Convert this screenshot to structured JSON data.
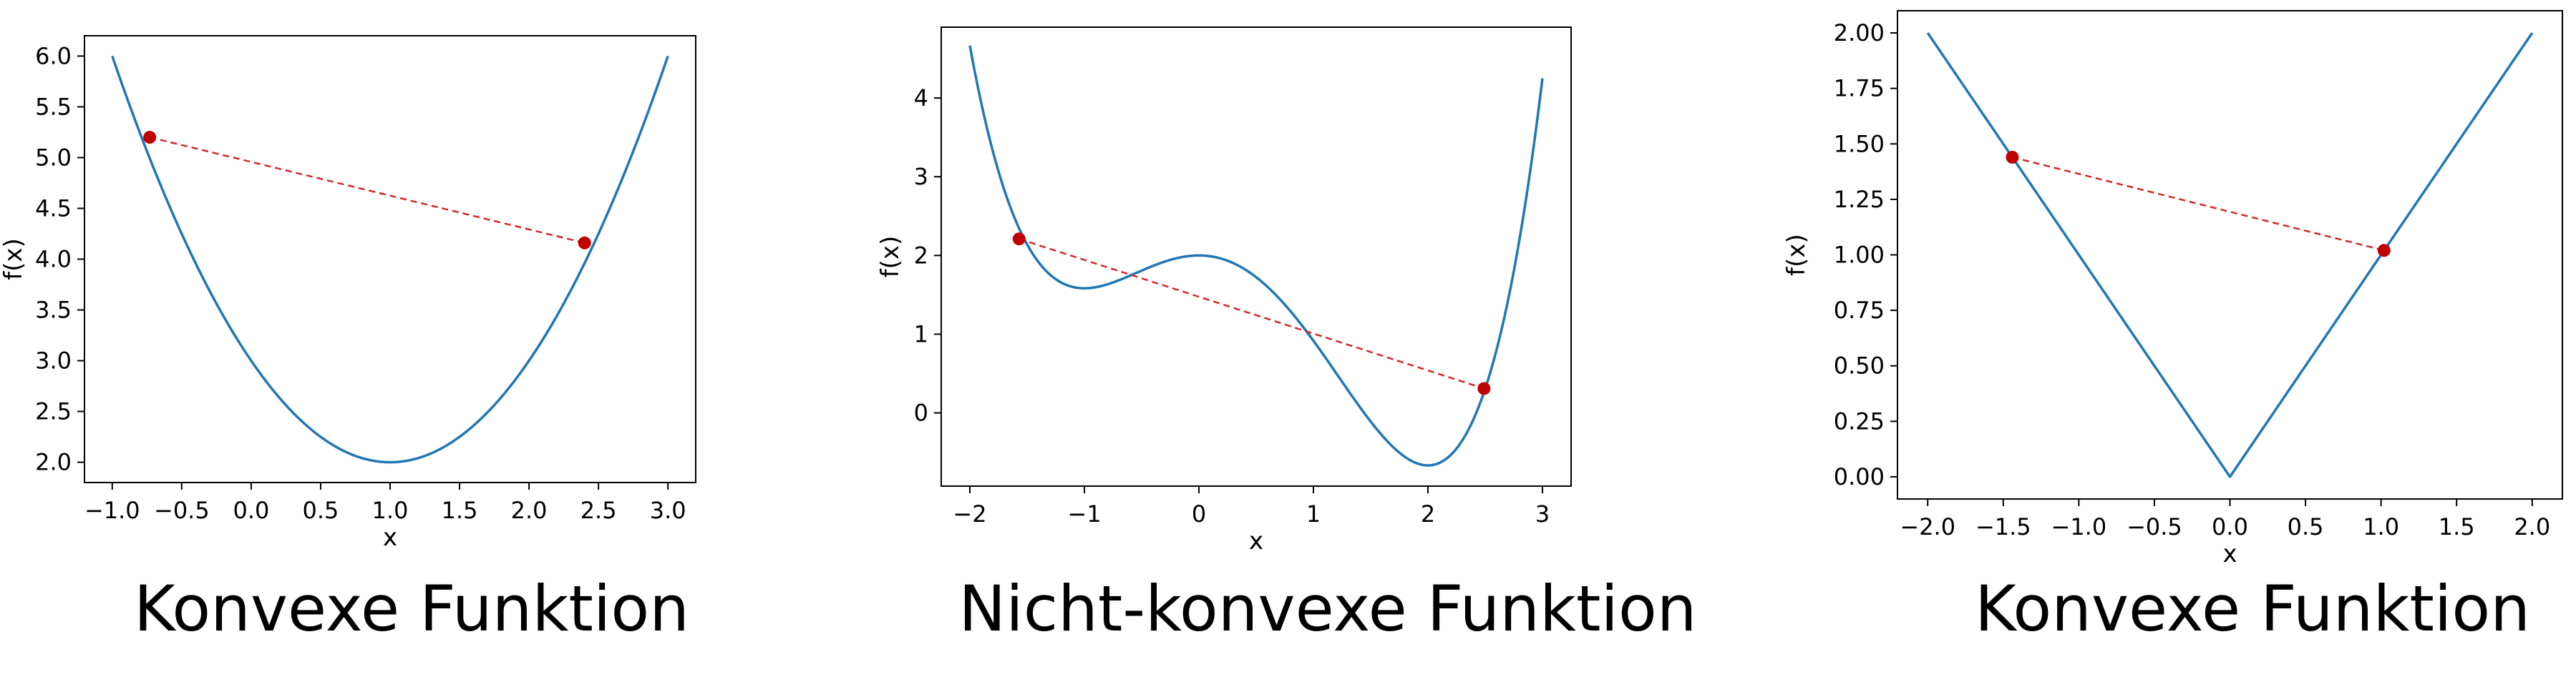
{
  "colors": {
    "curve": "#1f77b4",
    "chord": "#d62728",
    "points": "#c00000"
  },
  "chart_data": [
    {
      "type": "line",
      "function": "(x-1)^2 + 2",
      "title": "Konvexe Funktion",
      "xlabel": "x",
      "ylabel": "f(x)",
      "xlim": [
        -1.2,
        3.2
      ],
      "ylim": [
        1.8,
        6.2
      ],
      "xticks": [
        -1.0,
        -0.5,
        0.0,
        0.5,
        1.0,
        1.5,
        2.0,
        2.5,
        3.0
      ],
      "xtick_labels": [
        "−1.0",
        "−0.5",
        "0.0",
        "0.5",
        "1.0",
        "1.5",
        "2.0",
        "2.5",
        "3.0"
      ],
      "yticks": [
        2.0,
        2.5,
        3.0,
        3.5,
        4.0,
        4.5,
        5.0,
        5.5,
        6.0
      ],
      "ytick_labels": [
        "2.0",
        "2.5",
        "3.0",
        "3.5",
        "4.0",
        "4.5",
        "5.0",
        "5.5",
        "6.0"
      ],
      "x_range": [
        -1.0,
        3.0
      ],
      "chord_points": [
        {
          "x": -0.73,
          "y": 5.2
        },
        {
          "x": 2.4,
          "y": 4.16
        }
      ]
    },
    {
      "type": "line",
      "function": "x^4/4 - x^3/3 - x^2 + 2",
      "title": "Nicht-konvexe Funktion",
      "xlabel": "x",
      "ylabel": "f(x)",
      "xlim": [
        -2.25,
        3.25
      ],
      "ylim": [
        -0.93,
        4.9
      ],
      "xticks": [
        -2,
        -1,
        0,
        1,
        2,
        3
      ],
      "xtick_labels": [
        "−2",
        "−1",
        "0",
        "1",
        "2",
        "3"
      ],
      "yticks": [
        0,
        1,
        2,
        3,
        4
      ],
      "ytick_labels": [
        "0",
        "1",
        "2",
        "3",
        "4"
      ],
      "x_range": [
        -2.0,
        3.0
      ],
      "chord_points": [
        {
          "x": -1.57,
          "y": 2.21
        },
        {
          "x": 2.49,
          "y": 0.31
        }
      ]
    },
    {
      "type": "line",
      "function": "|x|",
      "title": "Konvexe Funktion",
      "xlabel": "x",
      "ylabel": "f(x)",
      "xlim": [
        -2.2,
        2.2
      ],
      "ylim": [
        -0.1,
        2.1
      ],
      "xticks": [
        -2.0,
        -1.5,
        -1.0,
        -0.5,
        0.0,
        0.5,
        1.0,
        1.5,
        2.0
      ],
      "xtick_labels": [
        "−2.0",
        "−1.5",
        "−1.0",
        "−0.5",
        "0.0",
        "0.5",
        "1.0",
        "1.5",
        "2.0"
      ],
      "yticks": [
        0.0,
        0.25,
        0.5,
        0.75,
        1.0,
        1.25,
        1.5,
        1.75,
        2.0
      ],
      "ytick_labels": [
        "0.00",
        "0.25",
        "0.50",
        "0.75",
        "1.00",
        "1.25",
        "1.50",
        "1.75",
        "2.00"
      ],
      "x_range": [
        -2.0,
        2.0
      ],
      "chord_points": [
        {
          "x": -1.44,
          "y": 1.44
        },
        {
          "x": 1.02,
          "y": 1.02
        }
      ]
    }
  ]
}
